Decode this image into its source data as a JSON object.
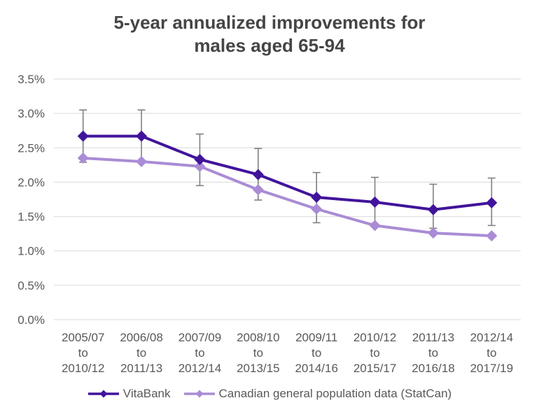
{
  "title": {
    "line1": "5-year annualized improvements for",
    "line2": "males aged 65-94"
  },
  "chart_data": {
    "type": "line",
    "title": "5-year annualized improvements for males aged 65-94",
    "categories": [
      "2005/07 to 2010/12",
      "2006/08 to 2011/13",
      "2007/09 to 2012/14",
      "2008/10 to 2013/15",
      "2009/11 to 2014/16",
      "2010/12 to 2015/17",
      "2011/13 to 2016/18",
      "2012/14 to 2017/19"
    ],
    "category_label_lines": [
      [
        "2005/07",
        "to",
        "2010/12"
      ],
      [
        "2006/08",
        "to",
        "2011/13"
      ],
      [
        "2007/09",
        "to",
        "2012/14"
      ],
      [
        "2008/10",
        "to",
        "2013/15"
      ],
      [
        "2009/11",
        "to",
        "2014/16"
      ],
      [
        "2010/12",
        "to",
        "2015/17"
      ],
      [
        "2011/13",
        "to",
        "2016/18"
      ],
      [
        "2012/14",
        "to",
        "2017/19"
      ]
    ],
    "series": [
      {
        "name": "VitaBank",
        "color": "#41149B",
        "values": [
          2.67,
          2.67,
          2.33,
          2.11,
          1.78,
          1.71,
          1.6,
          1.7
        ],
        "error_low": [
          2.29,
          2.29,
          1.95,
          1.74,
          1.41,
          1.35,
          1.33,
          1.37
        ],
        "error_high": [
          3.05,
          3.05,
          2.7,
          2.49,
          2.14,
          2.07,
          1.97,
          2.06
        ]
      },
      {
        "name": "Canadian general population data (StatCan)",
        "color": "#A98CD5",
        "values": [
          2.35,
          2.3,
          2.23,
          1.89,
          1.61,
          1.37,
          1.26,
          1.22
        ]
      }
    ],
    "xlabel": "",
    "ylabel": "",
    "ylim": [
      0,
      3.5
    ],
    "ytick_values": [
      0,
      0.5,
      1.0,
      1.5,
      2.0,
      2.5,
      3.0,
      3.5
    ],
    "ytick_labels": [
      "0.0%",
      "0.5%",
      "1.0%",
      "1.5%",
      "2.0%",
      "2.5%",
      "3.0%",
      "3.5%"
    ],
    "grid": "horizontal",
    "marker": "diamond",
    "legend_position": "bottom"
  },
  "colors": {
    "background": "#FFFFFF",
    "title_text": "#454545",
    "axis_text": "#595959",
    "gridline": "#D9D9D9",
    "error_bar": "#808080"
  }
}
